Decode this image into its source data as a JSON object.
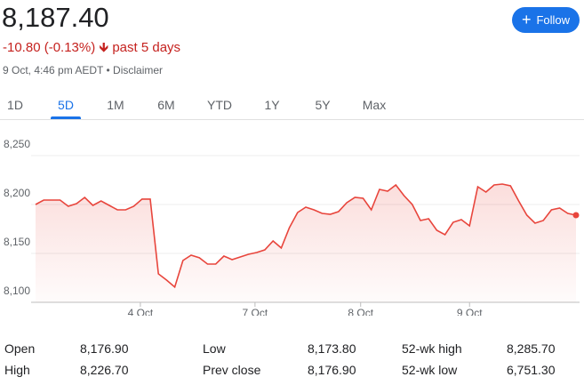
{
  "header": {
    "price": "8,187.40",
    "change": "-10.80 (-0.13%)",
    "period": "past 5 days",
    "timestamp": "9 Oct, 4:46 pm AEDT",
    "disclaimer": "Disclaimer",
    "follow": "Follow"
  },
  "tabs": {
    "items": [
      "1D",
      "5D",
      "1M",
      "6M",
      "YTD",
      "1Y",
      "5Y",
      "Max"
    ],
    "selected": "5D"
  },
  "chart_data": {
    "type": "line",
    "color": "#e8453c",
    "values": [
      8200,
      8204.5,
      8204.5,
      8204.5,
      8198.2,
      8200.9,
      8207.3,
      8199.1,
      8203.6,
      8199.1,
      8194.5,
      8194.5,
      8198.2,
      8205.5,
      8205.5,
      8129.1,
      8122.7,
      8115.5,
      8142.7,
      8148.2,
      8145.5,
      8139.1,
      8139.1,
      8147.3,
      8143.6,
      8146.4,
      8149.1,
      8150.9,
      8153.6,
      8162.7,
      8155.5,
      8176.4,
      8191.8,
      8197.3,
      8194.5,
      8190.9,
      8190,
      8192.7,
      8201.8,
      8207.3,
      8206.4,
      8194.5,
      8215.5,
      8213.6,
      8220,
      8209.1,
      8200,
      8183.6,
      8185.5,
      8173.6,
      8169.1,
      8181.8,
      8184.5,
      8178.2,
      8218.2,
      8212.7,
      8220,
      8220.9,
      8219.1,
      8203.6,
      8189.1,
      8180.9,
      8183.6,
      8194.5,
      8196.4,
      8190.9,
      8189.1
    ],
    "xlim": [
      0,
      66
    ],
    "xticks": [
      {
        "value": 12.8,
        "label": "4 Oct"
      },
      {
        "value": 26.8,
        "label": "7 Oct"
      },
      {
        "value": 39.7,
        "label": "8 Oct"
      },
      {
        "value": 53,
        "label": "9 Oct"
      }
    ],
    "ylim": [
      8100,
      8250
    ],
    "yticks": [
      {
        "value": 8100,
        "label": "8,100"
      },
      {
        "value": 8150,
        "label": "8,150"
      },
      {
        "value": 8200,
        "label": "8,200"
      },
      {
        "value": 8250,
        "label": "8,250"
      }
    ],
    "grid": true
  },
  "stats": {
    "rows": [
      [
        [
          "Open",
          "8,176.90"
        ],
        [
          "Low",
          "8,173.80"
        ],
        [
          "52-wk high",
          "8,285.70"
        ]
      ],
      [
        [
          "High",
          "8,226.70"
        ],
        [
          "Prev close",
          "8,176.90"
        ],
        [
          "52-wk low",
          "6,751.30"
        ]
      ]
    ]
  }
}
